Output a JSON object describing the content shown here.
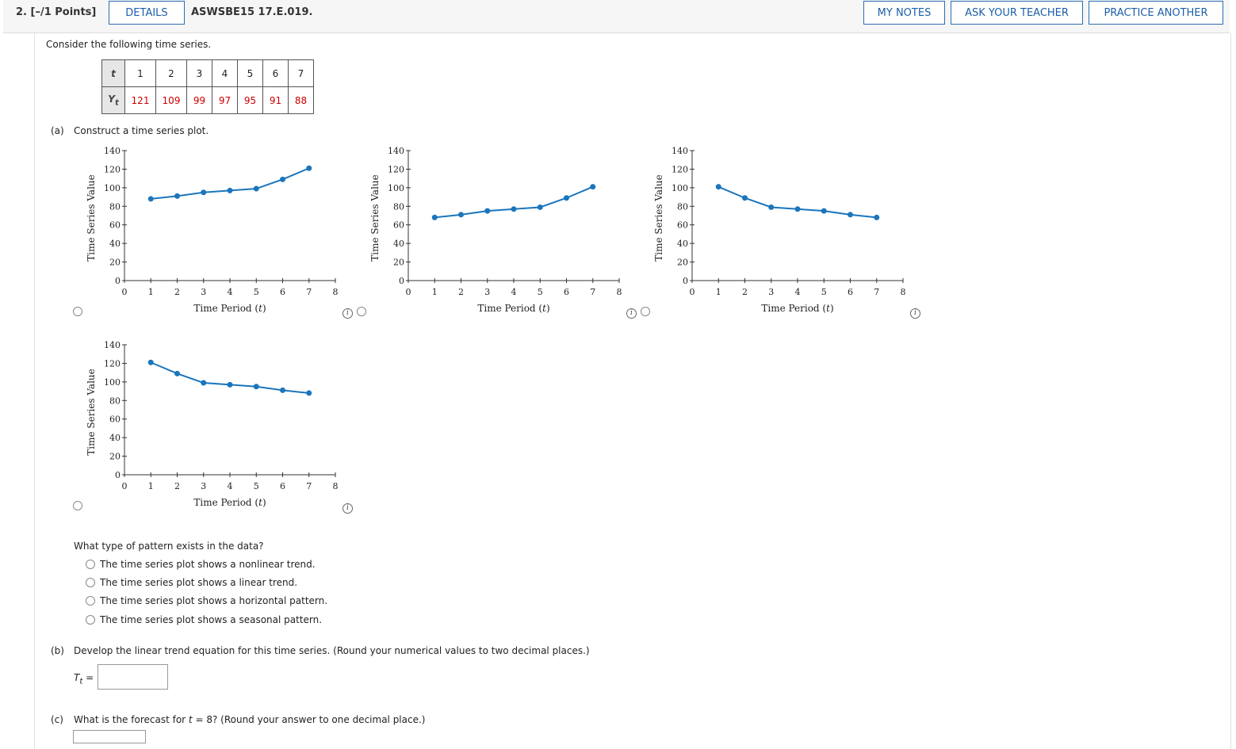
{
  "header": {
    "points": "2.  [–/1 Points]",
    "details": "DETAILS",
    "question_id": "ASWSBE15 17.E.019.",
    "my_notes": "MY NOTES",
    "ask_teacher": "ASK YOUR TEACHER",
    "practice": "PRACTICE ANOTHER"
  },
  "intro": "Consider the following time series.",
  "table": {
    "t_label": "t",
    "y_label": "Y",
    "y_sub": "t",
    "t": [
      "1",
      "2",
      "3",
      "4",
      "5",
      "6",
      "7"
    ],
    "y": [
      "121",
      "109",
      "99",
      "97",
      "95",
      "91",
      "88"
    ]
  },
  "part_a": {
    "label": "(a)",
    "prompt": "Construct a time series plot.",
    "xlabel": "Time Period (",
    "xlabel_var": "t",
    "xlabel_close": ")",
    "ylabel": "Time Series Value",
    "icons": [
      "info-icon",
      "radio-icon"
    ]
  },
  "chart_data": [
    {
      "type": "line",
      "x": [
        1,
        2,
        3,
        4,
        5,
        6,
        7
      ],
      "values": [
        88,
        91,
        95,
        97,
        99,
        109,
        121
      ],
      "xlabel": "Time Period (t)",
      "ylabel": "Time Series Value",
      "xlim": [
        0,
        8
      ],
      "ylim": [
        0,
        140
      ],
      "xticks": [
        0,
        1,
        2,
        3,
        4,
        5,
        6,
        7,
        8
      ],
      "yticks": [
        0,
        20,
        40,
        60,
        80,
        100,
        120,
        140
      ],
      "color": "#1a75bc"
    },
    {
      "type": "line",
      "x": [
        1,
        2,
        3,
        4,
        5,
        6,
        7
      ],
      "values": [
        68,
        71,
        75,
        77,
        79,
        89,
        101
      ],
      "xlabel": "Time Period (t)",
      "ylabel": "Time Series Value",
      "xlim": [
        0,
        8
      ],
      "ylim": [
        0,
        140
      ],
      "xticks": [
        0,
        1,
        2,
        3,
        4,
        5,
        6,
        7,
        8
      ],
      "yticks": [
        0,
        20,
        40,
        60,
        80,
        100,
        120,
        140
      ],
      "color": "#1a75bc"
    },
    {
      "type": "line",
      "x": [
        1,
        2,
        3,
        4,
        5,
        6,
        7
      ],
      "values": [
        101,
        89,
        79,
        77,
        75,
        71,
        68
      ],
      "xlabel": "Time Period (t)",
      "ylabel": "Time Series Value",
      "xlim": [
        0,
        8
      ],
      "ylim": [
        0,
        140
      ],
      "xticks": [
        0,
        1,
        2,
        3,
        4,
        5,
        6,
        7,
        8
      ],
      "yticks": [
        0,
        20,
        40,
        60,
        80,
        100,
        120,
        140
      ],
      "color": "#1a75bc"
    },
    {
      "type": "line",
      "x": [
        1,
        2,
        3,
        4,
        5,
        6,
        7
      ],
      "values": [
        121,
        109,
        99,
        97,
        95,
        91,
        88
      ],
      "xlabel": "Time Period (t)",
      "ylabel": "Time Series Value",
      "xlim": [
        0,
        8
      ],
      "ylim": [
        0,
        140
      ],
      "xticks": [
        0,
        1,
        2,
        3,
        4,
        5,
        6,
        7,
        8
      ],
      "yticks": [
        0,
        20,
        40,
        60,
        80,
        100,
        120,
        140
      ],
      "color": "#1a75bc"
    }
  ],
  "pattern": {
    "question": "What type of pattern exists in the data?",
    "options": [
      "The time series plot shows a nonlinear trend.",
      "The time series plot shows a linear trend.",
      "The time series plot shows a horizontal pattern.",
      "The time series plot shows a seasonal pattern."
    ]
  },
  "part_b": {
    "label": "(b)",
    "prompt": "Develop the linear trend equation for this time series. (Round your numerical values to two decimal places.)",
    "var": "T",
    "var_sub": "t",
    "eq": " =",
    "answer": ""
  },
  "part_c": {
    "label": "(c)",
    "prompt_pre": "What is the forecast for ",
    "prompt_var": "t",
    "prompt_post": " = 8? (Round your answer to one decimal place.)",
    "answer": ""
  }
}
